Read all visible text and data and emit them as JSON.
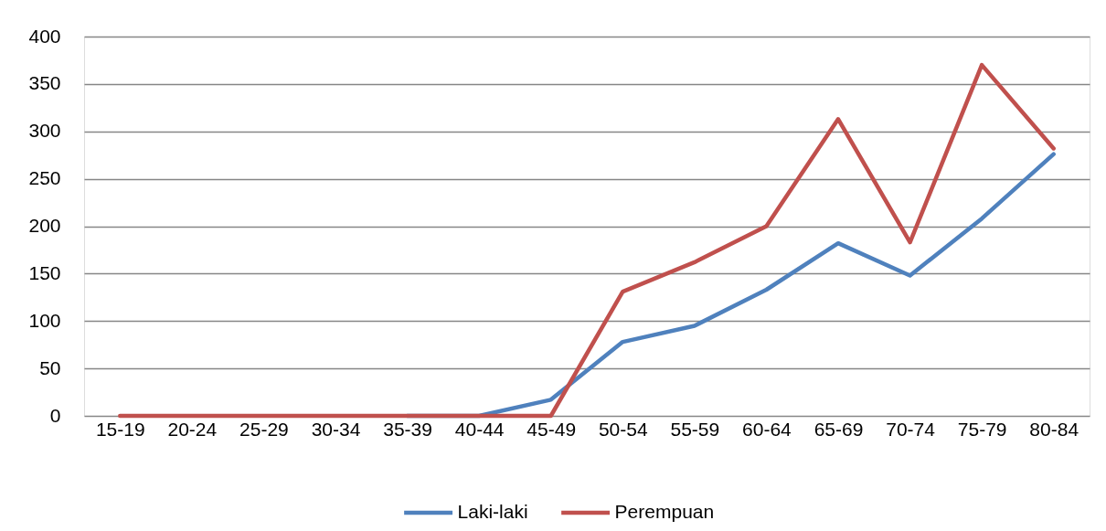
{
  "chart_data": {
    "type": "line",
    "categories": [
      "15-19",
      "20-24",
      "25-29",
      "30-34",
      "35-39",
      "40-44",
      "45-49",
      "50-54",
      "55-59",
      "60-64",
      "65-69",
      "70-74",
      "75-79",
      "80-84"
    ],
    "series": [
      {
        "name": "Laki-laki",
        "color": "#4f81bd",
        "values": [
          null,
          null,
          null,
          null,
          0,
          0,
          17,
          78,
          95,
          133,
          182,
          148,
          208,
          276
        ]
      },
      {
        "name": "Perempuan",
        "color": "#c0504d",
        "values": [
          0,
          0,
          0,
          0,
          0,
          0,
          0,
          131,
          162,
          200,
          313,
          183,
          370,
          282
        ]
      }
    ],
    "ylim": [
      0,
      400
    ],
    "yticks": [
      0,
      50,
      100,
      150,
      200,
      250,
      300,
      350,
      400
    ],
    "grid": "y",
    "legend": "bottom",
    "marker": "none",
    "line_style": "solid"
  }
}
